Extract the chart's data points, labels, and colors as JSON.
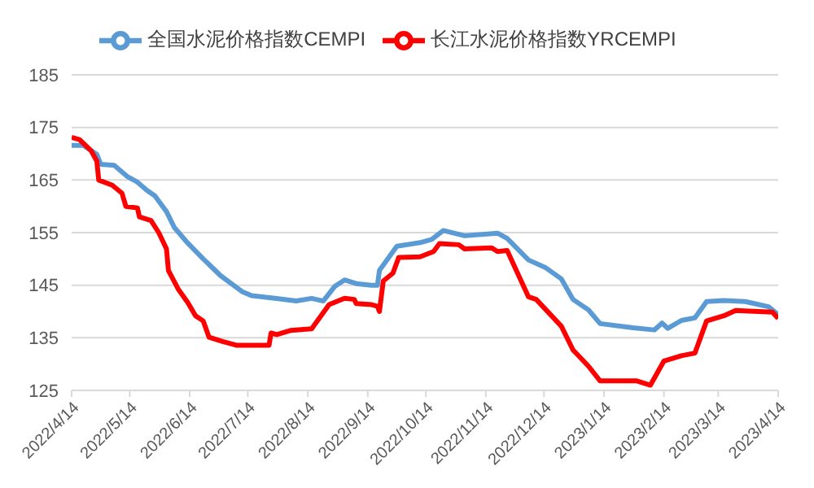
{
  "chart_data": {
    "type": "line",
    "legend": "top",
    "grid": "y",
    "marker": "none",
    "line_style": "solid",
    "ylim": [
      125,
      185
    ],
    "yticks": [
      125,
      135,
      145,
      155,
      165,
      175,
      185
    ],
    "xlim": [
      "2022-04-14",
      "2023-04-14"
    ],
    "xticks": [
      {
        "value": "2022-04-14",
        "label": "2022/4/14"
      },
      {
        "value": "2022-05-14",
        "label": "2022/5/14"
      },
      {
        "value": "2022-06-14",
        "label": "2022/6/14"
      },
      {
        "value": "2022-07-14",
        "label": "2022/7/14"
      },
      {
        "value": "2022-08-14",
        "label": "2022/8/14"
      },
      {
        "value": "2022-09-14",
        "label": "2022/9/14"
      },
      {
        "value": "2022-10-14",
        "label": "2022/10/14"
      },
      {
        "value": "2022-11-14",
        "label": "2022/11/14"
      },
      {
        "value": "2022-12-14",
        "label": "2022/12/14"
      },
      {
        "value": "2023-01-14",
        "label": "2023/1/14"
      },
      {
        "value": "2023-02-14",
        "label": "2023/2/14"
      },
      {
        "value": "2023-03-14",
        "label": "2023/3/14"
      },
      {
        "value": "2023-04-14",
        "label": "2023/4/14"
      }
    ],
    "series": [
      {
        "name": "全国水泥价格指数CEMPI",
        "color": "#5b9bd5",
        "x": [
          "2022-04-14",
          "2022-04-20",
          "2022-04-27",
          "2022-04-29",
          "2022-05-06",
          "2022-05-13",
          "2022-05-18",
          "2022-05-23",
          "2022-05-27",
          "2022-06-02",
          "2022-06-06",
          "2022-06-13",
          "2022-06-21",
          "2022-06-30",
          "2022-07-11",
          "2022-07-16",
          "2022-07-28",
          "2022-08-08",
          "2022-08-16",
          "2022-08-22",
          "2022-08-28",
          "2022-09-02",
          "2022-09-08",
          "2022-09-16",
          "2022-09-19",
          "2022-09-20",
          "2022-09-29",
          "2022-10-11",
          "2022-10-17",
          "2022-10-23",
          "2022-11-03",
          "2022-11-20",
          "2022-11-25",
          "2022-12-06",
          "2022-12-15",
          "2022-12-23",
          "2022-12-29",
          "2023-01-06",
          "2023-01-12",
          "2023-01-29",
          "2023-02-09",
          "2023-02-13",
          "2023-02-16",
          "2023-02-23",
          "2023-03-02",
          "2023-03-08",
          "2023-03-17",
          "2023-03-28",
          "2023-04-09",
          "2023-04-14"
        ],
        "values": [
          171.6,
          171.6,
          169.9,
          168,
          167.8,
          165.6,
          164.6,
          163,
          162,
          159,
          156,
          153,
          150,
          146.8,
          143.8,
          143,
          142.5,
          142,
          142.5,
          142,
          144.8,
          146,
          145.3,
          145,
          145,
          147.8,
          152.4,
          153.1,
          153.7,
          155.4,
          154.4,
          154.9,
          153.9,
          149.8,
          148.3,
          146.2,
          142.3,
          140.3,
          137.7,
          136.9,
          136.5,
          137.8,
          136.8,
          138.3,
          138.8,
          141.9,
          142.1,
          141.9,
          140.9,
          139.4
        ]
      },
      {
        "name": "长江水泥价格指数YRCEMPI",
        "color": "#ff0000",
        "x": [
          "2022-04-14",
          "2022-04-18",
          "2022-04-24",
          "2022-04-27",
          "2022-04-28",
          "2022-05-05",
          "2022-05-10",
          "2022-05-12",
          "2022-05-18",
          "2022-05-19",
          "2022-05-25",
          "2022-05-29",
          "2022-06-02",
          "2022-06-03",
          "2022-06-08",
          "2022-06-13",
          "2022-06-17",
          "2022-06-21",
          "2022-06-24",
          "2022-07-01",
          "2022-07-08",
          "2022-07-25",
          "2022-07-26",
          "2022-07-29",
          "2022-08-05",
          "2022-08-16",
          "2022-08-25",
          "2022-09-02",
          "2022-09-07",
          "2022-09-08",
          "2022-09-16",
          "2022-09-19",
          "2022-09-20",
          "2022-09-22",
          "2022-09-27",
          "2022-09-30",
          "2022-10-11",
          "2022-10-18",
          "2022-10-21",
          "2022-10-31",
          "2022-11-03",
          "2022-11-17",
          "2022-11-20",
          "2022-11-25",
          "2022-12-06",
          "2022-12-10",
          "2022-12-23",
          "2022-12-29",
          "2023-01-06",
          "2023-01-12",
          "2023-01-31",
          "2023-02-07",
          "2023-02-14",
          "2023-02-23",
          "2023-03-02",
          "2023-03-08",
          "2023-03-17",
          "2023-03-23",
          "2023-04-11",
          "2023-04-14"
        ],
        "values": [
          173.1,
          172.7,
          170.6,
          168.6,
          165,
          164,
          162.5,
          160,
          159.7,
          158,
          157.3,
          155,
          151.9,
          147.8,
          144.3,
          141.7,
          139.2,
          138.2,
          135.1,
          134.3,
          133.6,
          133.6,
          135.9,
          135.6,
          136.4,
          136.7,
          141.3,
          142.5,
          142.3,
          141.5,
          141.3,
          141,
          140,
          145.8,
          147.3,
          150.3,
          150.4,
          151.4,
          152.9,
          152.7,
          151.9,
          152.1,
          151.4,
          151.6,
          142.8,
          142.3,
          137.2,
          132.7,
          129.6,
          126.8,
          126.8,
          126,
          130.6,
          131.6,
          132.1,
          138.2,
          139.2,
          140.2,
          139.9,
          138.7
        ]
      }
    ]
  }
}
